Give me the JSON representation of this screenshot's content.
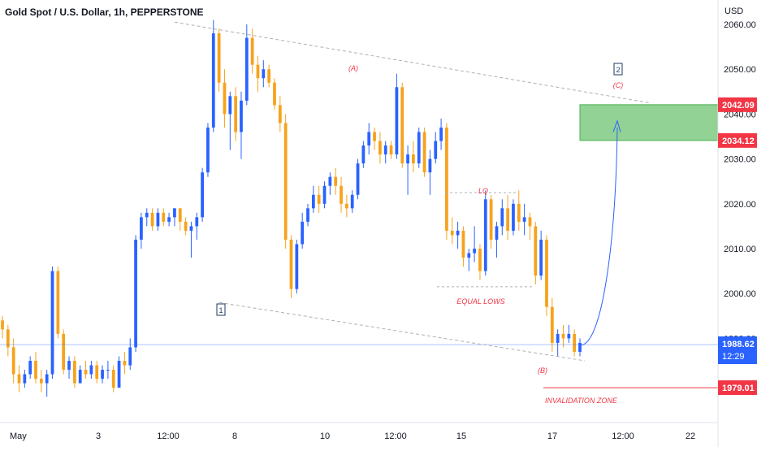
{
  "header": {
    "symbol": "Gold Spot / U.S. Dollar, 1h, PEPPERSTONE",
    "currency": "USD"
  },
  "colors": {
    "bull": "#2962ff",
    "bear": "#f7a21b",
    "wick": "#808080",
    "zone_fill": "#92d295",
    "zone_border": "#4caf50",
    "red_label": "#f23645",
    "dashed": "#b0b0b0",
    "current_line": "#2962ff",
    "current_badge": "#2962ff",
    "axis_text": "#131722"
  },
  "chart_data": {
    "type": "candlestick",
    "price_axis": {
      "ticks": [
        "2060.00",
        "2050.00",
        "2040.00",
        "2030.00",
        "2020.00",
        "2010.00",
        "2000.00",
        "1990.00",
        "1980.00"
      ],
      "ylim": [
        1974,
        2062
      ]
    },
    "time_axis": {
      "ticks": [
        "May",
        "3",
        "12:00",
        "8",
        "10",
        "12:00",
        "15",
        "17",
        "12:00",
        "22"
      ]
    },
    "price_labels": [
      {
        "name": "target-high",
        "value": "2042.09",
        "color": "#f23645"
      },
      {
        "name": "target-low",
        "value": "2034.12",
        "color": "#f23645"
      },
      {
        "name": "current",
        "value": "1988.62",
        "sub": "12:29",
        "color": "#2962ff"
      },
      {
        "name": "invalidation",
        "value": "1979.01",
        "color": "#f23645"
      }
    ],
    "annotations": {
      "wave_a": "(A)",
      "wave_b": "(B)",
      "wave_c": "(C)",
      "wave_1": "1",
      "wave_2": "2",
      "lq": "LQ",
      "equal_lows": "EQUAL LOWS",
      "invalidation": "INVALIDATION ZONE"
    },
    "candles": [
      [
        1994,
        1995,
        1990,
        1992
      ],
      [
        1992,
        1993,
        1986,
        1988
      ],
      [
        1988,
        1990,
        1980,
        1982
      ],
      [
        1982,
        1984,
        1978,
        1980
      ],
      [
        1980,
        1983,
        1979,
        1982
      ],
      [
        1982,
        1986,
        1981,
        1985
      ],
      [
        1985,
        1987,
        1980,
        1981
      ],
      [
        1981,
        1983,
        1978,
        1980
      ],
      [
        1980,
        1983,
        1977,
        1982
      ],
      [
        1982,
        2006,
        1981,
        2005
      ],
      [
        2005,
        2006,
        1990,
        1991
      ],
      [
        1991,
        1992,
        1982,
        1983
      ],
      [
        1983,
        1986,
        1981,
        1985
      ],
      [
        1985,
        1986,
        1979,
        1980
      ],
      [
        1980,
        1984,
        1980,
        1983
      ],
      [
        1983,
        1985,
        1981,
        1982
      ],
      [
        1982,
        1985,
        1981,
        1984
      ],
      [
        1984,
        1985,
        1980,
        1981
      ],
      [
        1981,
        1984,
        1980,
        1983
      ],
      [
        1983,
        1985,
        1981,
        1983
      ],
      [
        1983,
        1984,
        1978,
        1979
      ],
      [
        1979,
        1986,
        1979,
        1985
      ],
      [
        1985,
        1987,
        1982,
        1984
      ],
      [
        1984,
        1990,
        1983,
        1988
      ],
      [
        1988,
        2013,
        1987,
        2012
      ],
      [
        2012,
        2018,
        2010,
        2017
      ],
      [
        2017,
        2019,
        2015,
        2018
      ],
      [
        2018,
        2019,
        2014,
        2015
      ],
      [
        2015,
        2019,
        2014,
        2018
      ],
      [
        2018,
        2019,
        2015,
        2016
      ],
      [
        2016,
        2018,
        2015,
        2017
      ],
      [
        2017,
        2019,
        2015,
        2019
      ],
      [
        2019,
        2019,
        2014,
        2016
      ],
      [
        2016,
        2017,
        2013,
        2014
      ],
      [
        2014,
        2016,
        2008,
        2015
      ],
      [
        2015,
        2018,
        2012,
        2017
      ],
      [
        2017,
        2028,
        2016,
        2027
      ],
      [
        2027,
        2038,
        2026,
        2037
      ],
      [
        2037,
        2061,
        2036,
        2058
      ],
      [
        2058,
        2059,
        2045,
        2047
      ],
      [
        2047,
        2050,
        2037,
        2040
      ],
      [
        2040,
        2045,
        2032,
        2044
      ],
      [
        2044,
        2046,
        2034,
        2036
      ],
      [
        2036,
        2045,
        2030,
        2043
      ],
      [
        2043,
        2060,
        2042,
        2057
      ],
      [
        2057,
        2059,
        2049,
        2051
      ],
      [
        2051,
        2053,
        2045,
        2048
      ],
      [
        2048,
        2052,
        2046,
        2050
      ],
      [
        2050,
        2051,
        2046,
        2047
      ],
      [
        2047,
        2048,
        2041,
        2042
      ],
      [
        2042,
        2044,
        2036,
        2038
      ],
      [
        2038,
        2040,
        2010,
        2012
      ],
      [
        2012,
        2013,
        1999,
        2001
      ],
      [
        2001,
        2012,
        2000,
        2011
      ],
      [
        2011,
        2018,
        2010,
        2016
      ],
      [
        2016,
        2020,
        2015,
        2019
      ],
      [
        2019,
        2024,
        2018,
        2022
      ],
      [
        2022,
        2024,
        2018,
        2020
      ],
      [
        2020,
        2025,
        2019,
        2024
      ],
      [
        2024,
        2027,
        2022,
        2026
      ],
      [
        2026,
        2028,
        2022,
        2024
      ],
      [
        2024,
        2026,
        2018,
        2020
      ],
      [
        2020,
        2022,
        2017,
        2019
      ],
      [
        2019,
        2023,
        2018,
        2022
      ],
      [
        2022,
        2030,
        2021,
        2029
      ],
      [
        2029,
        2034,
        2028,
        2033
      ],
      [
        2033,
        2038,
        2031,
        2036
      ],
      [
        2036,
        2037,
        2032,
        2034
      ],
      [
        2034,
        2036,
        2029,
        2031
      ],
      [
        2031,
        2034,
        2029,
        2033
      ],
      [
        2033,
        2034,
        2030,
        2031
      ],
      [
        2031,
        2049,
        2030,
        2046
      ],
      [
        2046,
        2047,
        2028,
        2029
      ],
      [
        2029,
        2033,
        2022,
        2031
      ],
      [
        2031,
        2034,
        2027,
        2029
      ],
      [
        2029,
        2037,
        2028,
        2036
      ],
      [
        2036,
        2037,
        2026,
        2027
      ],
      [
        2027,
        2032,
        2022,
        2030
      ],
      [
        2030,
        2036,
        2029,
        2034
      ],
      [
        2034,
        2039,
        2032,
        2037
      ],
      [
        2037,
        2038,
        2012,
        2014
      ],
      [
        2014,
        2017,
        2011,
        2013
      ],
      [
        2013,
        2016,
        2010,
        2014
      ],
      [
        2014,
        2015,
        2006,
        2008
      ],
      [
        2008,
        2010,
        2005,
        2009
      ],
      [
        2009,
        2015,
        2007,
        2010
      ],
      [
        2010,
        2011,
        2003,
        2005
      ],
      [
        2005,
        2023,
        2004,
        2021
      ],
      [
        2021,
        2022,
        2010,
        2012
      ],
      [
        2012,
        2016,
        2008,
        2015
      ],
      [
        2015,
        2021,
        2013,
        2019
      ],
      [
        2019,
        2022,
        2012,
        2014
      ],
      [
        2014,
        2021,
        2013,
        2020
      ],
      [
        2020,
        2023,
        2014,
        2016
      ],
      [
        2016,
        2020,
        2013,
        2017
      ],
      [
        2017,
        2018,
        2012,
        2015
      ],
      [
        2015,
        2016,
        2002,
        2004
      ],
      [
        2004,
        2014,
        2003,
        2012
      ],
      [
        2012,
        2013,
        1995,
        1997
      ],
      [
        1997,
        1999,
        1987,
        1989
      ],
      [
        1989,
        1992,
        1986,
        1991
      ],
      [
        1991,
        1993,
        1988,
        1990
      ],
      [
        1990,
        1993,
        1989,
        1991
      ],
      [
        1991,
        1992,
        1986,
        1987
      ],
      [
        1987,
        1990,
        1986,
        1989
      ]
    ]
  }
}
